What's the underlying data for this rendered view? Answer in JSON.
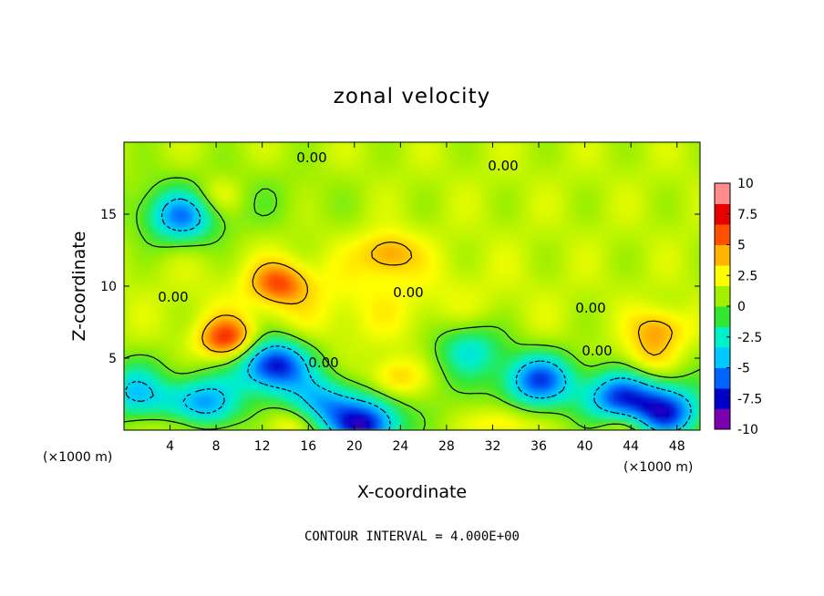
{
  "figure": {
    "title": "zonal velocity",
    "footnote": "CONTOUR INTERVAL = 4.000E+00"
  },
  "chart_data": {
    "type": "heatmap",
    "title": "zonal velocity",
    "xlabel": "X-coordinate",
    "ylabel": "Z-coordinate",
    "x_unit_left": "(×1000 m)",
    "x_unit_right": "(×1000 m)",
    "xlim": [
      0,
      50
    ],
    "ylim": [
      0,
      20
    ],
    "xticks": [
      "4",
      "8",
      "12",
      "16",
      "20",
      "24",
      "28",
      "32",
      "36",
      "40",
      "44",
      "48"
    ],
    "yticks": [
      "5",
      "10",
      "15"
    ],
    "contour_interval": 4.0,
    "contour_labels": [
      "0.00",
      "0.00",
      "0.00",
      "0.00",
      "0.00",
      "0.00",
      "0.00"
    ],
    "colorbar": {
      "min": -10,
      "max": 10,
      "ticks": [
        "10",
        "7.5",
        "5",
        "2.5",
        "0",
        "-2.5",
        "-5",
        "-7.5",
        "-10"
      ],
      "colors": [
        "#7a00b0",
        "#0000c8",
        "#0064ff",
        "#00c8ff",
        "#00f0c8",
        "#32e632",
        "#a0f000",
        "#ffff00",
        "#ffb400",
        "#ff5000",
        "#e60000",
        "#ff8c8c"
      ]
    },
    "features": [
      {
        "kind": "max",
        "x": 9,
        "z": 6.3,
        "value": 7.5
      },
      {
        "kind": "max",
        "x": 13.5,
        "z": 10.2,
        "value": 6
      },
      {
        "kind": "max",
        "x": 23,
        "z": 12.3,
        "value": 5
      },
      {
        "kind": "max",
        "x": 23.5,
        "z": 3.6,
        "value": 5
      },
      {
        "kind": "max",
        "x": 2.5,
        "z": 3.3,
        "value": 4
      },
      {
        "kind": "max",
        "x": 46.5,
        "z": 7.0,
        "value": 5
      },
      {
        "kind": "max",
        "x": 45.5,
        "z": 5.0,
        "value": 4
      },
      {
        "kind": "max",
        "x": 14.5,
        "z": 0.5,
        "value": 4
      },
      {
        "kind": "max",
        "x": 33,
        "z": 0.4,
        "value": 4
      },
      {
        "kind": "max",
        "x": 5.5,
        "z": 0.3,
        "value": 4
      },
      {
        "kind": "max",
        "x": 43.5,
        "z": 0.2,
        "value": 4
      },
      {
        "kind": "max",
        "x": 8,
        "z": 16.2,
        "value": 4
      },
      {
        "kind": "min",
        "x": 5,
        "z": 14.8,
        "value": -5
      },
      {
        "kind": "min",
        "x": 13,
        "z": 4.6,
        "value": -8
      },
      {
        "kind": "min",
        "x": 21,
        "z": 0.3,
        "value": -8
      },
      {
        "kind": "min",
        "x": 36,
        "z": 3.5,
        "value": -6
      },
      {
        "kind": "min",
        "x": 43,
        "z": 2.2,
        "value": -6
      },
      {
        "kind": "min",
        "x": 47,
        "z": 1.2,
        "value": -7
      },
      {
        "kind": "min",
        "x": 1.5,
        "z": 2.8,
        "value": -5
      },
      {
        "kind": "min",
        "x": 7,
        "z": 1.7,
        "value": -5
      },
      {
        "kind": "min",
        "x": 17,
        "z": 1.8,
        "value": -4
      },
      {
        "kind": "min",
        "x": 30,
        "z": 5.7,
        "value": -3
      }
    ],
    "background_value": 1.5
  }
}
